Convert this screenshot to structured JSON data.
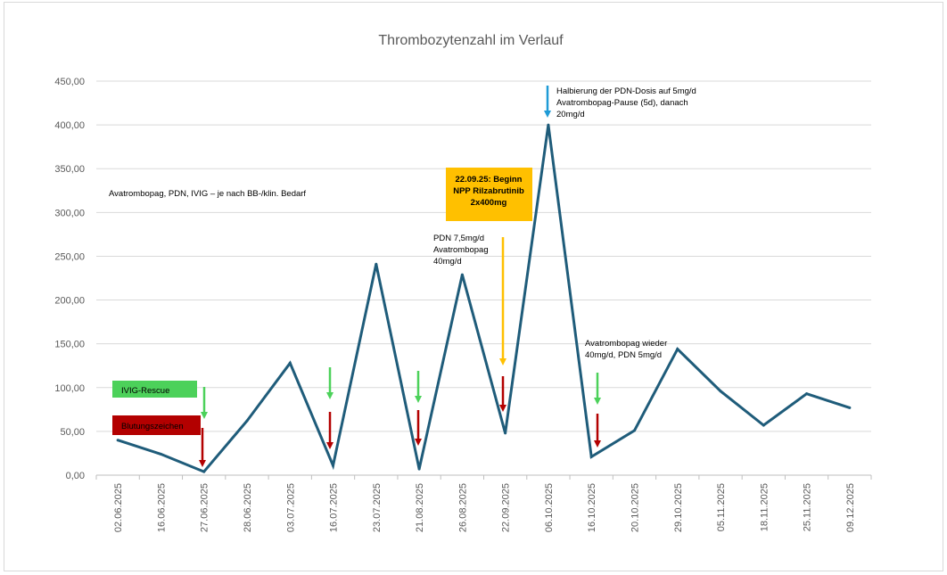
{
  "chart_data": {
    "type": "line",
    "title": "Thrombozytenzahl im Verlauf",
    "xlabel": "",
    "ylabel": "",
    "ylim": [
      0,
      450
    ],
    "yticks": [
      "0,00",
      "50,00",
      "100,00",
      "150,00",
      "200,00",
      "250,00",
      "300,00",
      "350,00",
      "400,00",
      "450,00"
    ],
    "grid": true,
    "legend": "none",
    "categories": [
      "02.06.2025",
      "16.06.2025",
      "27.06.2025",
      "28.06.2025",
      "03.07.2025",
      "16.07.2025",
      "23.07.2025",
      "21.08.2025",
      "26.08.2025",
      "22.09.2025",
      "06.10.2025",
      "16.10.2025",
      "20.10.2025",
      "29.10.2025",
      "05.11.2025",
      "18.11.2025",
      "25.11.2025",
      "09.12.2025"
    ],
    "series": [
      {
        "color": "#1f5c7a",
        "values": [
          40,
          24,
          4,
          62,
          128,
          11,
          241,
          7,
          229,
          48,
          400,
          21,
          51,
          144,
          96,
          57,
          93,
          77
        ]
      }
    ],
    "annotations": {
      "avatrombopag_note": "Avatrombopag, PDN, IVIG – je nach BB-/klin. Bedarf",
      "ivig_label": "IVIG-Rescue",
      "blutung_label": "Blutungszeichen",
      "pdn_line1": "PDN 7,5mg/d",
      "pdn_line2": "Avatrombopag",
      "pdn_line3": "40mg/d",
      "rilza_line1": "22.09.25: Beginn",
      "rilza_line2": "NPP Rilzabrutinib",
      "rilza_line3": "2x400mg",
      "halb_line1": "Halbierung der PDN-Dosis auf 5mg/d",
      "halb_line2": "Avatrombopag-Pause (5d), danach",
      "halb_line3": "20mg/d",
      "wieder_line1": "Avatrombopag wieder",
      "wieder_line2": "40mg/d, PDN 5mg/d"
    },
    "colors": {
      "green": "#4cd15a",
      "red": "#b30000",
      "orange": "#ffc000",
      "blue": "#1f9bd6"
    }
  }
}
